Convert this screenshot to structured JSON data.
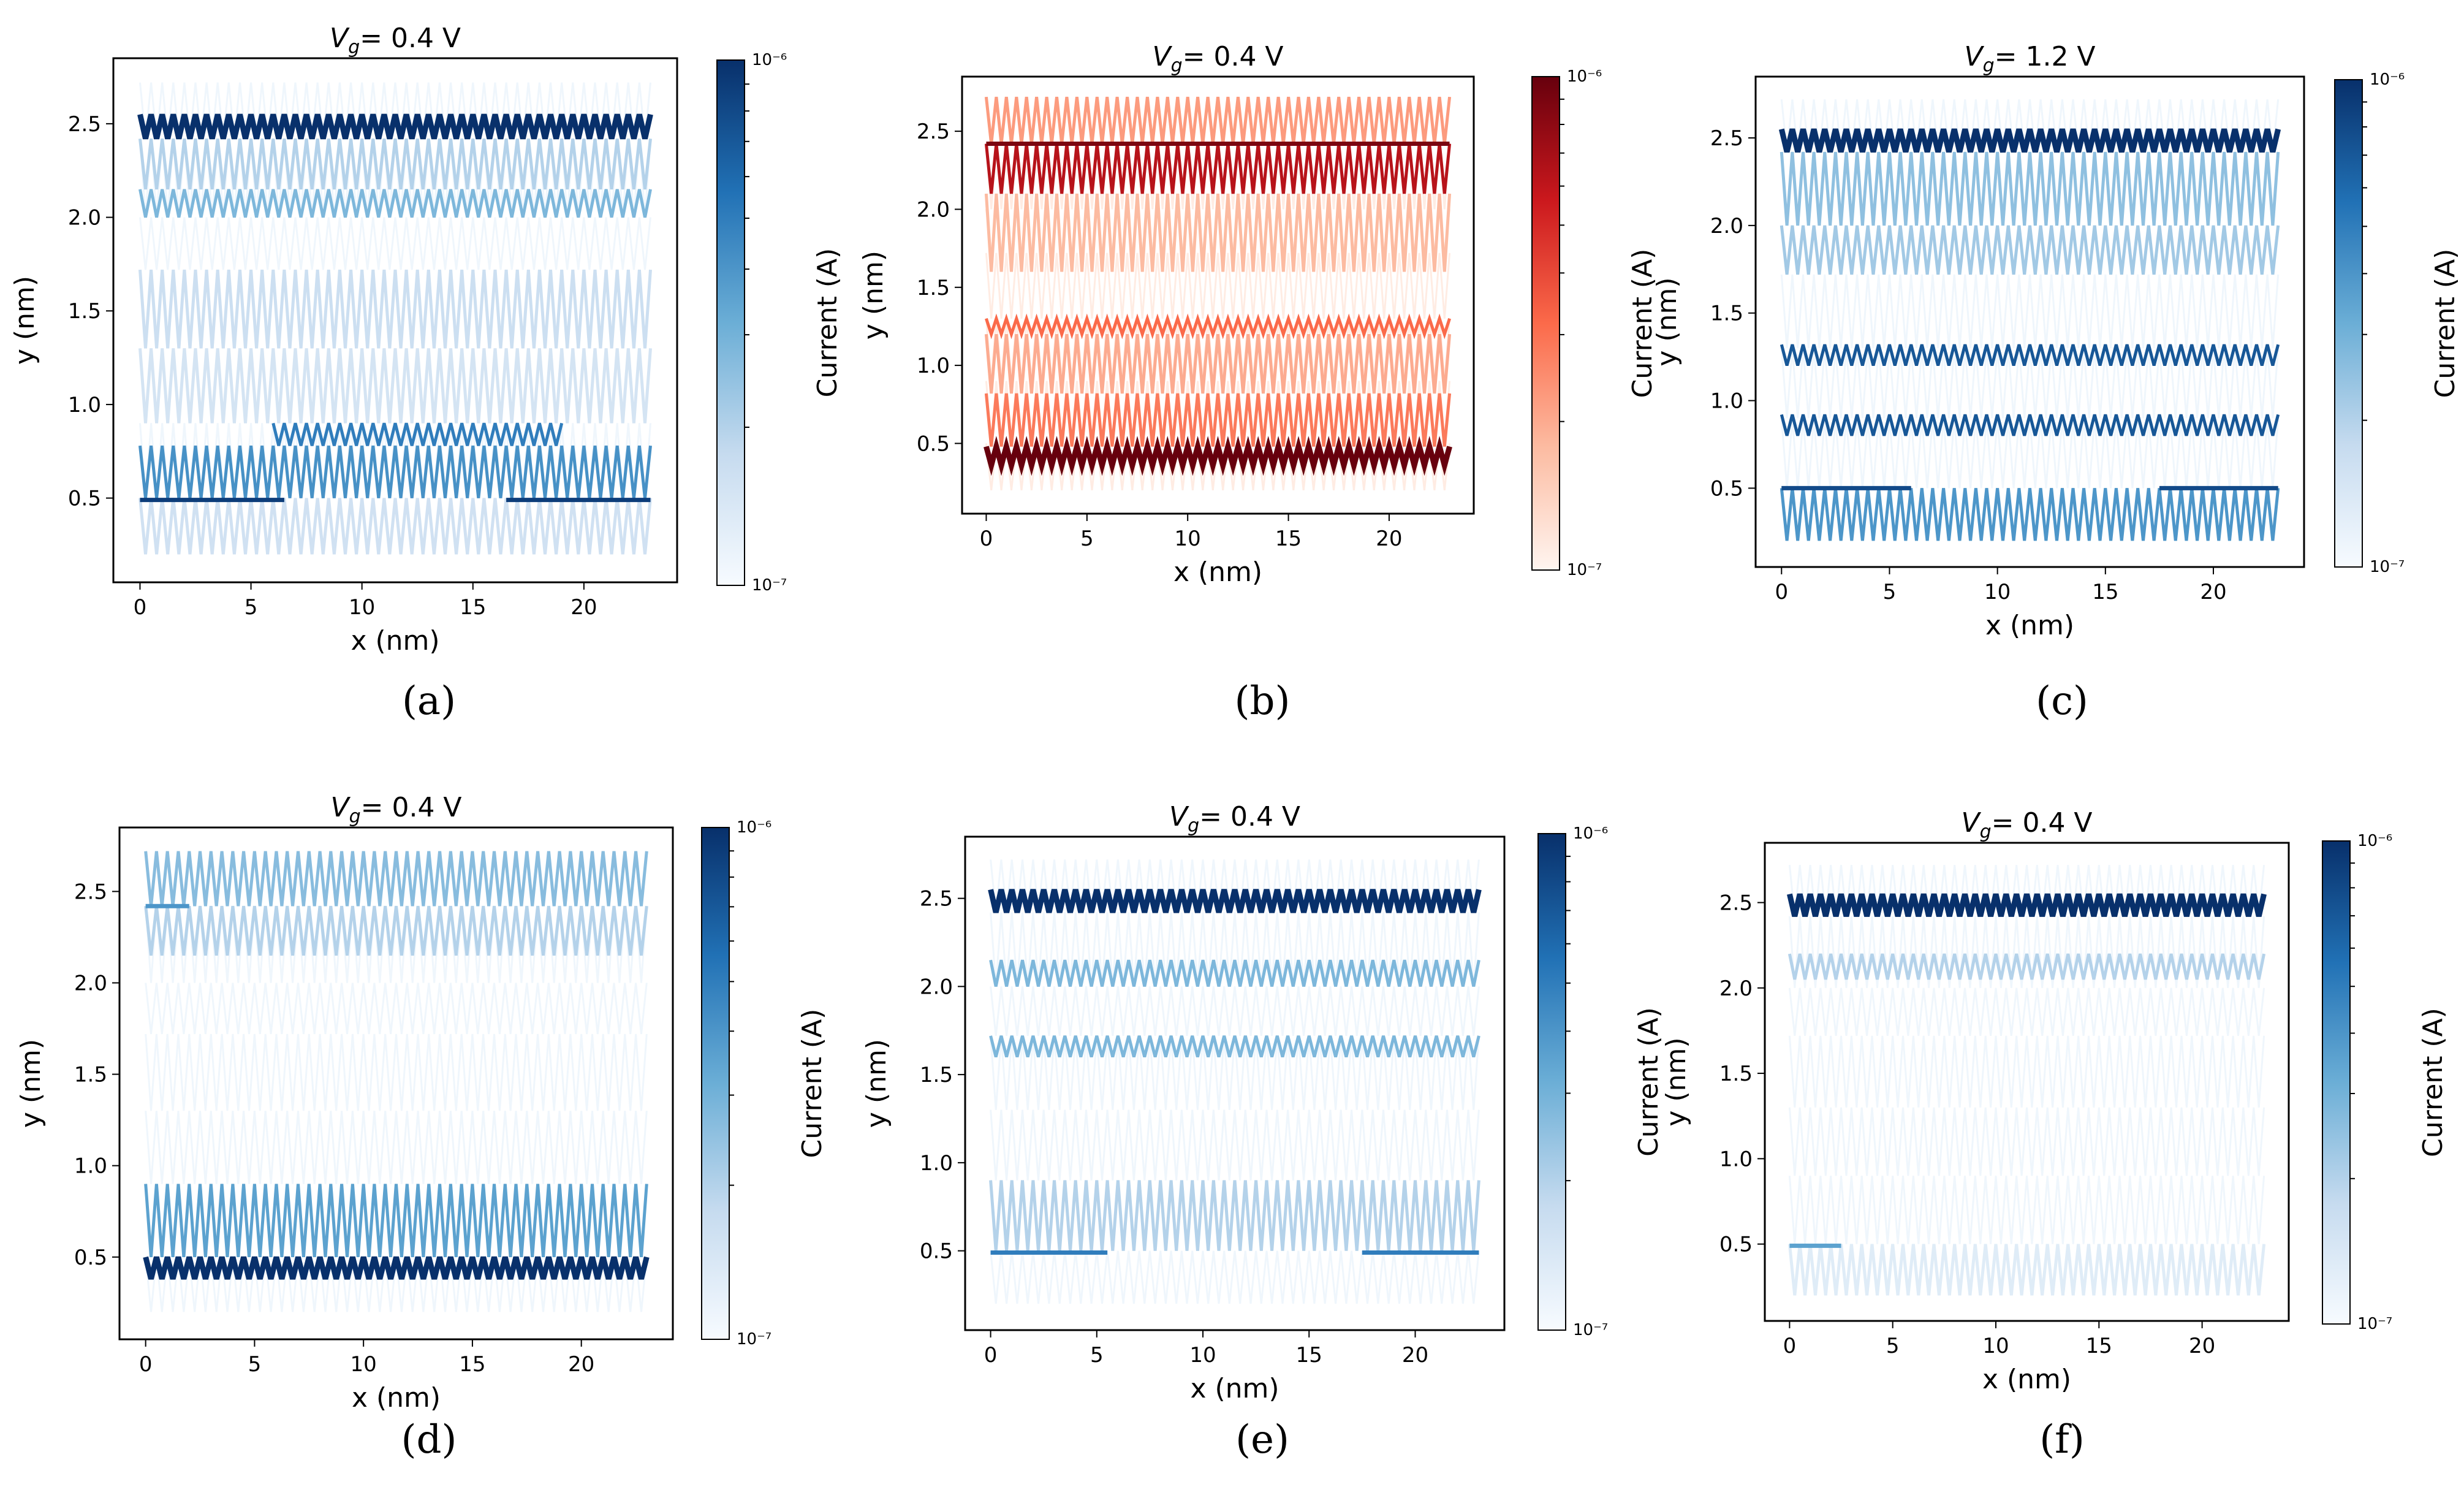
{
  "figure": {
    "panels": [
      {
        "id": "a",
        "label": "(a)",
        "title_prefix": "V",
        "title_sub": "g",
        "title_suffix": "= 0.4 V",
        "colormap": "blues",
        "colorbar": {
          "label": "Current (A)",
          "top": "10⁻⁶",
          "bottom": "10⁻⁷"
        },
        "xlabel": "x (nm)",
        "ylabel": "y (nm)",
        "xticks": [
          0,
          5,
          10,
          15,
          20
        ],
        "yticks": [
          0.5,
          1.0,
          1.5,
          2.0,
          2.5
        ],
        "xlim": [
          -1.2,
          24.2
        ],
        "ylim": [
          0.05,
          2.85
        ]
      },
      {
        "id": "b",
        "label": "(b)",
        "title_prefix": "V",
        "title_sub": "g",
        "title_suffix": "= 0.4 V",
        "colormap": "reds",
        "colorbar": {
          "label": "Current (A)",
          "top": "10⁻⁶",
          "bottom": "10⁻⁷"
        },
        "xlabel": "x (nm)",
        "ylabel": "y (nm)",
        "xticks": [
          0,
          5,
          10,
          15,
          20
        ],
        "yticks": [
          0.5,
          1.0,
          1.5,
          2.0,
          2.5
        ],
        "xlim": [
          -1.2,
          24.2
        ],
        "ylim": [
          0.05,
          2.85
        ]
      },
      {
        "id": "c",
        "label": "(c)",
        "title_prefix": "V",
        "title_sub": "g",
        "title_suffix": "= 1.2 V",
        "colormap": "blues",
        "colorbar": {
          "label": "Current (A)",
          "top": "10⁻⁶",
          "bottom": "10⁻⁷"
        },
        "xlabel": "x (nm)",
        "ylabel": "y (nm)",
        "xticks": [
          0,
          5,
          10,
          15,
          20
        ],
        "yticks": [
          0.5,
          1.0,
          1.5,
          2.0,
          2.5
        ],
        "xlim": [
          -1.2,
          24.2
        ],
        "ylim": [
          0.05,
          2.85
        ]
      },
      {
        "id": "d",
        "label": "(d)",
        "title_prefix": "V",
        "title_sub": "g",
        "title_suffix": "= 0.4 V",
        "colormap": "blues",
        "colorbar": {
          "label": "Current (A)",
          "top": "10⁻⁶",
          "bottom": "10⁻⁷"
        },
        "xlabel": "x (nm)",
        "ylabel": "y (nm)",
        "xticks": [
          0,
          5,
          10,
          15,
          20
        ],
        "yticks": [
          0.5,
          1.0,
          1.5,
          2.0,
          2.5
        ],
        "xlim": [
          -1.2,
          24.2
        ],
        "ylim": [
          0.05,
          2.85
        ]
      },
      {
        "id": "e",
        "label": "(e)",
        "title_prefix": "V",
        "title_sub": "g",
        "title_suffix": "= 0.4 V",
        "colormap": "blues",
        "colorbar": {
          "label": "Current (A)",
          "top": "10⁻⁶",
          "bottom": "10⁻⁷"
        },
        "xlabel": "x (nm)",
        "ylabel": "y (nm)",
        "xticks": [
          0,
          5,
          10,
          15,
          20
        ],
        "yticks": [
          0.5,
          1.0,
          1.5,
          2.0,
          2.5
        ],
        "xlim": [
          -1.2,
          24.2
        ],
        "ylim": [
          0.05,
          2.85
        ]
      },
      {
        "id": "f",
        "label": "(f)",
        "title_prefix": "V",
        "title_sub": "g",
        "title_suffix": "= 0.4 V",
        "colormap": "blues",
        "colorbar": {
          "label": "Current (A)",
          "top": "10⁻⁶",
          "bottom": "10⁻⁷"
        },
        "xlabel": "x (nm)",
        "ylabel": "y (nm)",
        "xticks": [
          0,
          5,
          10,
          15,
          20
        ],
        "yticks": [
          0.5,
          1.0,
          1.5,
          2.0,
          2.5
        ],
        "xlim": [
          -1.2,
          24.2
        ],
        "ylim": [
          0.05,
          2.85
        ]
      }
    ]
  },
  "chart_data": [
    {
      "panel": "a",
      "type": "heatmap",
      "title": "Vg= 0.4 V",
      "xlabel": "x (nm)",
      "ylabel": "y (nm)",
      "colorbar_label": "Current (A)",
      "colorbar_range": [
        "1e-7",
        "1e-6"
      ],
      "x_range": [
        0,
        23
      ],
      "zigzag_bands": [
        {
          "y": [
            2.42,
            2.55
          ],
          "x": [
            0,
            23
          ],
          "intensity": 1.0
        },
        {
          "y": [
            2.15,
            2.42
          ],
          "x": [
            0,
            23
          ],
          "intensity": 0.3
        },
        {
          "y": [
            2.0,
            2.15
          ],
          "x": [
            0,
            23
          ],
          "intensity": 0.45
        },
        {
          "y": [
            1.3,
            1.72
          ],
          "x": [
            0,
            23
          ],
          "intensity": 0.22
        },
        {
          "y": [
            0.9,
            1.3
          ],
          "x": [
            0,
            23
          ],
          "intensity": 0.18
        },
        {
          "y": [
            0.78,
            0.9
          ],
          "x": [
            6,
            19
          ],
          "intensity": 0.7
        },
        {
          "y": [
            0.5,
            0.78
          ],
          "x": [
            0,
            23
          ],
          "intensity": 0.62
        },
        {
          "y": [
            0.2,
            0.5
          ],
          "x": [
            0,
            23
          ],
          "intensity": 0.2
        }
      ],
      "horizontal_lines": [
        {
          "y": 0.49,
          "x": [
            0,
            6.5
          ],
          "intensity": 0.95
        },
        {
          "y": 0.49,
          "x": [
            16.5,
            23
          ],
          "intensity": 0.95
        }
      ]
    },
    {
      "panel": "b",
      "type": "heatmap",
      "title": "Vg= 0.4 V",
      "xlabel": "x (nm)",
      "ylabel": "y (nm)",
      "colorbar_label": "Current (A)",
      "colorbar_range": [
        "1e-7",
        "1e-6"
      ],
      "x_range": [
        0,
        23
      ],
      "zigzag_bands": [
        {
          "y": [
            2.42,
            2.72
          ],
          "x": [
            0,
            23
          ],
          "intensity": 0.35
        },
        {
          "y": [
            2.1,
            2.42
          ],
          "x": [
            0,
            23
          ],
          "intensity": 0.8
        },
        {
          "y": [
            1.6,
            2.1
          ],
          "x": [
            0,
            23
          ],
          "intensity": 0.25
        },
        {
          "y": [
            1.2,
            1.3
          ],
          "x": [
            0,
            23
          ],
          "intensity": 0.5
        },
        {
          "y": [
            0.82,
            1.2
          ],
          "x": [
            0,
            23
          ],
          "intensity": 0.3
        },
        {
          "y": [
            0.48,
            0.82
          ],
          "x": [
            0,
            23
          ],
          "intensity": 0.45
        },
        {
          "y": [
            0.36,
            0.48
          ],
          "x": [
            0,
            23
          ],
          "intensity": 1.0
        }
      ],
      "horizontal_lines": [
        {
          "y": 2.42,
          "x": [
            0,
            23
          ],
          "intensity": 0.95
        }
      ]
    },
    {
      "panel": "c",
      "type": "heatmap",
      "title": "Vg= 1.2 V",
      "xlabel": "x (nm)",
      "ylabel": "y (nm)",
      "colorbar_label": "Current (A)",
      "colorbar_range": [
        "1e-7",
        "1e-6"
      ],
      "x_range": [
        0,
        23
      ],
      "zigzag_bands": [
        {
          "y": [
            2.42,
            2.55
          ],
          "x": [
            0,
            23
          ],
          "intensity": 1.0
        },
        {
          "y": [
            2.0,
            2.42
          ],
          "x": [
            0,
            23
          ],
          "intensity": 0.4
        },
        {
          "y": [
            1.72,
            2.0
          ],
          "x": [
            0,
            23
          ],
          "intensity": 0.35
        },
        {
          "y": [
            1.2,
            1.32
          ],
          "x": [
            0,
            23
          ],
          "intensity": 0.85
        },
        {
          "y": [
            0.8,
            0.92
          ],
          "x": [
            0,
            23
          ],
          "intensity": 0.85
        },
        {
          "y": [
            0.2,
            0.5
          ],
          "x": [
            0,
            23
          ],
          "intensity": 0.6
        }
      ],
      "horizontal_lines": [
        {
          "y": 0.5,
          "x": [
            0,
            6
          ],
          "intensity": 0.9
        },
        {
          "y": 0.5,
          "x": [
            17.5,
            23
          ],
          "intensity": 0.9
        }
      ]
    },
    {
      "panel": "d",
      "type": "heatmap",
      "title": "Vg= 0.4 V",
      "xlabel": "x (nm)",
      "ylabel": "y (nm)",
      "colorbar_label": "Current (A)",
      "colorbar_range": [
        "1e-7",
        "1e-6"
      ],
      "x_range": [
        0,
        23
      ],
      "zigzag_bands": [
        {
          "y": [
            2.42,
            2.72
          ],
          "x": [
            0,
            23
          ],
          "intensity": 0.42
        },
        {
          "y": [
            2.15,
            2.42
          ],
          "x": [
            0,
            23
          ],
          "intensity": 0.3
        },
        {
          "y": [
            0.5,
            0.9
          ],
          "x": [
            0,
            23
          ],
          "intensity": 0.55
        },
        {
          "y": [
            0.38,
            0.5
          ],
          "x": [
            0,
            23
          ],
          "intensity": 1.0
        }
      ],
      "horizontal_lines": [
        {
          "y": 2.42,
          "x": [
            0,
            2
          ],
          "intensity": 0.6
        }
      ]
    },
    {
      "panel": "e",
      "type": "heatmap",
      "title": "Vg= 0.4 V",
      "xlabel": "x (nm)",
      "ylabel": "y (nm)",
      "colorbar_label": "Current (A)",
      "colorbar_range": [
        "1e-7",
        "1e-6"
      ],
      "x_range": [
        0,
        23
      ],
      "zigzag_bands": [
        {
          "y": [
            2.42,
            2.55
          ],
          "x": [
            0,
            23
          ],
          "intensity": 1.0
        },
        {
          "y": [
            2.0,
            2.15
          ],
          "x": [
            0,
            23
          ],
          "intensity": 0.45
        },
        {
          "y": [
            1.6,
            1.72
          ],
          "x": [
            0,
            23
          ],
          "intensity": 0.45
        },
        {
          "y": [
            0.5,
            0.9
          ],
          "x": [
            0,
            23
          ],
          "intensity": 0.3
        }
      ],
      "horizontal_lines": [
        {
          "y": 0.49,
          "x": [
            0,
            5.5
          ],
          "intensity": 0.7
        },
        {
          "y": 0.49,
          "x": [
            17.5,
            23
          ],
          "intensity": 0.7
        }
      ]
    },
    {
      "panel": "f",
      "type": "heatmap",
      "title": "Vg= 0.4 V",
      "xlabel": "x (nm)",
      "ylabel": "y (nm)",
      "colorbar_label": "Current (A)",
      "colorbar_range": [
        "1e-7",
        "1e-6"
      ],
      "x_range": [
        0,
        23
      ],
      "zigzag_bands": [
        {
          "y": [
            2.42,
            2.55
          ],
          "x": [
            0,
            23
          ],
          "intensity": 1.0
        },
        {
          "y": [
            2.05,
            2.2
          ],
          "x": [
            0,
            23
          ],
          "intensity": 0.3
        },
        {
          "y": [
            0.2,
            0.5
          ],
          "x": [
            0,
            23
          ],
          "intensity": 0.12
        }
      ],
      "horizontal_lines": [
        {
          "y": 0.49,
          "x": [
            0,
            2.5
          ],
          "intensity": 0.55
        }
      ]
    }
  ],
  "colors": {
    "blues": [
      "#f7fbff",
      "#c6dbef",
      "#6baed6",
      "#2171b5",
      "#08306b"
    ],
    "reds": [
      "#fff5f0",
      "#fcbba1",
      "#fb6a4a",
      "#cb181d",
      "#67000d"
    ]
  }
}
